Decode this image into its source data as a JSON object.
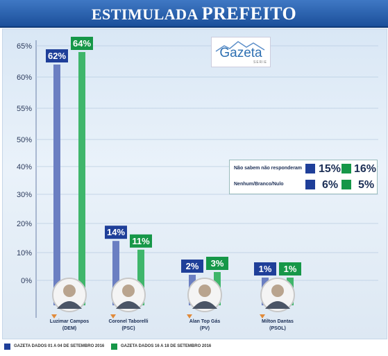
{
  "header": {
    "title_part1": "ESTIMULADA",
    "title_part2": "PREFEITO"
  },
  "logo": {
    "name": "Gazeta",
    "sub": "SERIE"
  },
  "colors": {
    "series1": "#6b7fc2",
    "series1_label_bg": "#1f3f99",
    "series2": "#3fb66b",
    "series2_label_bg": "#169748",
    "marker": "#e08a3a"
  },
  "chart_data": {
    "type": "bar",
    "ylim": [
      -5,
      65
    ],
    "yticks": [
      "65%",
      "60%",
      "55%",
      "50%",
      "40%",
      "30%",
      "20%",
      "10%",
      "0%"
    ],
    "categories": [
      {
        "name": "Luzimar Campos",
        "party": "(DEM)"
      },
      {
        "name": "Coronel Taborelli",
        "party": "(PSC)"
      },
      {
        "name": "Alan Top Gás",
        "party": "(PV)"
      },
      {
        "name": "Milton Dantas",
        "party": "(PSOL)"
      }
    ],
    "series": [
      {
        "name": "Gazeta Dados 01 a 04 de setembro 2016",
        "values": [
          62,
          14,
          2,
          1
        ],
        "labels": [
          "62%",
          "14%",
          "2%",
          "1%"
        ]
      },
      {
        "name": "Gazeta Dados 16 a 18 de setembro 2016",
        "values": [
          64,
          11,
          3,
          1
        ],
        "labels": [
          "64%",
          "11%",
          "3%",
          "1%"
        ]
      }
    ],
    "extra": [
      {
        "label": "Não sabem não responderam",
        "values": [
          "15%",
          "16%"
        ]
      },
      {
        "label": "Nenhum/Branco/Nulo",
        "values": [
          "6%",
          "5%"
        ]
      }
    ]
  },
  "footer": {
    "series1": "GAZETA DADOS 01 A 04 DE SETEMBRO 2016",
    "series2": "GAZETA DADOS 16 A 18 DE SETEMBRO 2016"
  }
}
